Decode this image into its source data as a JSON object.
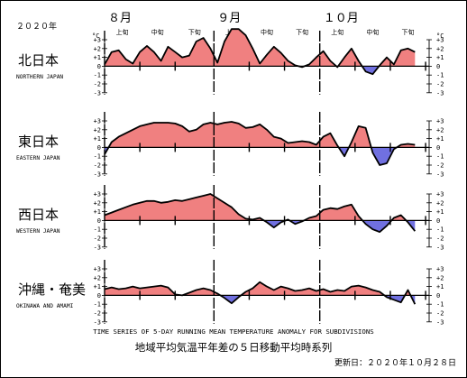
{
  "year_label": "２０２０年",
  "months": [
    {
      "label": "８月",
      "day_index": 0
    },
    {
      "label": "９月",
      "day_index": 31
    },
    {
      "label": "１０月",
      "day_index": 61
    }
  ],
  "dekads": [
    {
      "label": "上旬",
      "day_index": 5
    },
    {
      "label": "中旬",
      "day_index": 15
    },
    {
      "label": "下旬",
      "day_index": 25.5
    },
    {
      "label": "上旬",
      "day_index": 36
    },
    {
      "label": "中旬",
      "day_index": 46
    },
    {
      "label": "下旬",
      "day_index": 56
    },
    {
      "label": "上旬",
      "day_index": 66
    },
    {
      "label": "中旬",
      "day_index": 76
    },
    {
      "label": "下旬",
      "day_index": 86
    }
  ],
  "unit_label": "°C",
  "caption_en": "TIME SERIES OF 5-DAY RUNNING MEAN TEMPERATURE ANOMALY FOR SUBDIVISIONS",
  "caption_jp": "地域平均気温平年差の５日移動平均時系列",
  "updated": "更新日：２０２０年１０月２８日",
  "colors": {
    "positive": "#f08080",
    "negative": "#7070e0",
    "line": "#000000"
  },
  "chart_data": {
    "type": "area",
    "x_unit": "days from 2020-08-01",
    "x": [
      0,
      2,
      4,
      6,
      8,
      10,
      12,
      14,
      16,
      18,
      20,
      22,
      24,
      26,
      28,
      30,
      32,
      34,
      36,
      38,
      40,
      42,
      44,
      46,
      48,
      50,
      52,
      54,
      56,
      58,
      60,
      62,
      64,
      66,
      68,
      70,
      72,
      74,
      76,
      78,
      80,
      82,
      84,
      86,
      88
    ],
    "ylim": [
      -3,
      3
    ],
    "yticks": [
      -3,
      -2,
      -1,
      0,
      1,
      2,
      3
    ],
    "series": [
      {
        "name_jp": "北日本",
        "name_en": "NORTHERN JAPAN",
        "values": [
          0.2,
          1.6,
          1.8,
          0.8,
          0.3,
          1.6,
          2.3,
          1.6,
          0.6,
          2.2,
          1.6,
          1.0,
          1.2,
          2.8,
          3.2,
          2.0,
          0.4,
          2.8,
          4.2,
          4.2,
          3.5,
          2.0,
          0.3,
          1.3,
          2.2,
          1.5,
          0.6,
          0.1,
          -0.1,
          0.2,
          1.0,
          1.7,
          0.6,
          -0.1,
          1.0,
          2.0,
          0.6,
          -0.6,
          -0.9,
          0.1,
          1.0,
          0.2,
          1.8,
          2.0,
          1.6
        ]
      },
      {
        "name_jp": "東日本",
        "name_en": "EASTERN JAPAN",
        "values": [
          -0.8,
          0.6,
          1.2,
          1.6,
          2.0,
          2.4,
          2.6,
          2.8,
          2.8,
          2.8,
          2.7,
          2.4,
          1.8,
          2.0,
          2.6,
          2.8,
          2.6,
          2.8,
          2.9,
          2.7,
          2.2,
          2.3,
          2.6,
          2.0,
          1.2,
          1.0,
          0.5,
          0.6,
          0.7,
          0.6,
          0.3,
          1.2,
          1.6,
          0.2,
          -1.0,
          0.6,
          2.4,
          2.2,
          -0.6,
          -2.0,
          -1.8,
          -0.2,
          0.3,
          0.4,
          0.3
        ]
      },
      {
        "name_jp": "西日本",
        "name_en": "WESTERN JAPAN",
        "values": [
          0.6,
          0.9,
          1.2,
          1.5,
          1.8,
          2.0,
          2.2,
          2.2,
          2.0,
          2.1,
          2.3,
          2.2,
          2.4,
          2.6,
          2.8,
          3.0,
          2.5,
          2.0,
          1.5,
          0.7,
          0.2,
          0.1,
          0.3,
          -0.2,
          -0.8,
          -0.2,
          0.1,
          -0.4,
          -0.1,
          0.3,
          0.5,
          1.2,
          1.4,
          1.3,
          1.6,
          1.8,
          0.5,
          -0.4,
          -1.0,
          -1.3,
          -0.6,
          0.3,
          0.6,
          -0.2,
          -1.2
        ]
      },
      {
        "name_jp": "沖縄・奄美",
        "name_en": "OKINAWA AND AMAMI",
        "values": [
          0.7,
          0.9,
          0.7,
          0.8,
          1.0,
          0.8,
          0.9,
          1.0,
          1.1,
          0.9,
          0.1,
          0.0,
          0.3,
          0.6,
          0.8,
          0.6,
          0.2,
          -0.3,
          -0.9,
          -0.2,
          0.4,
          0.8,
          1.5,
          1.0,
          0.6,
          1.0,
          0.8,
          0.5,
          0.6,
          0.8,
          0.5,
          0.7,
          0.4,
          0.6,
          0.5,
          1.0,
          1.1,
          0.9,
          0.6,
          0.4,
          -0.2,
          -0.5,
          -0.8,
          0.6,
          -1.0
        ]
      }
    ]
  }
}
